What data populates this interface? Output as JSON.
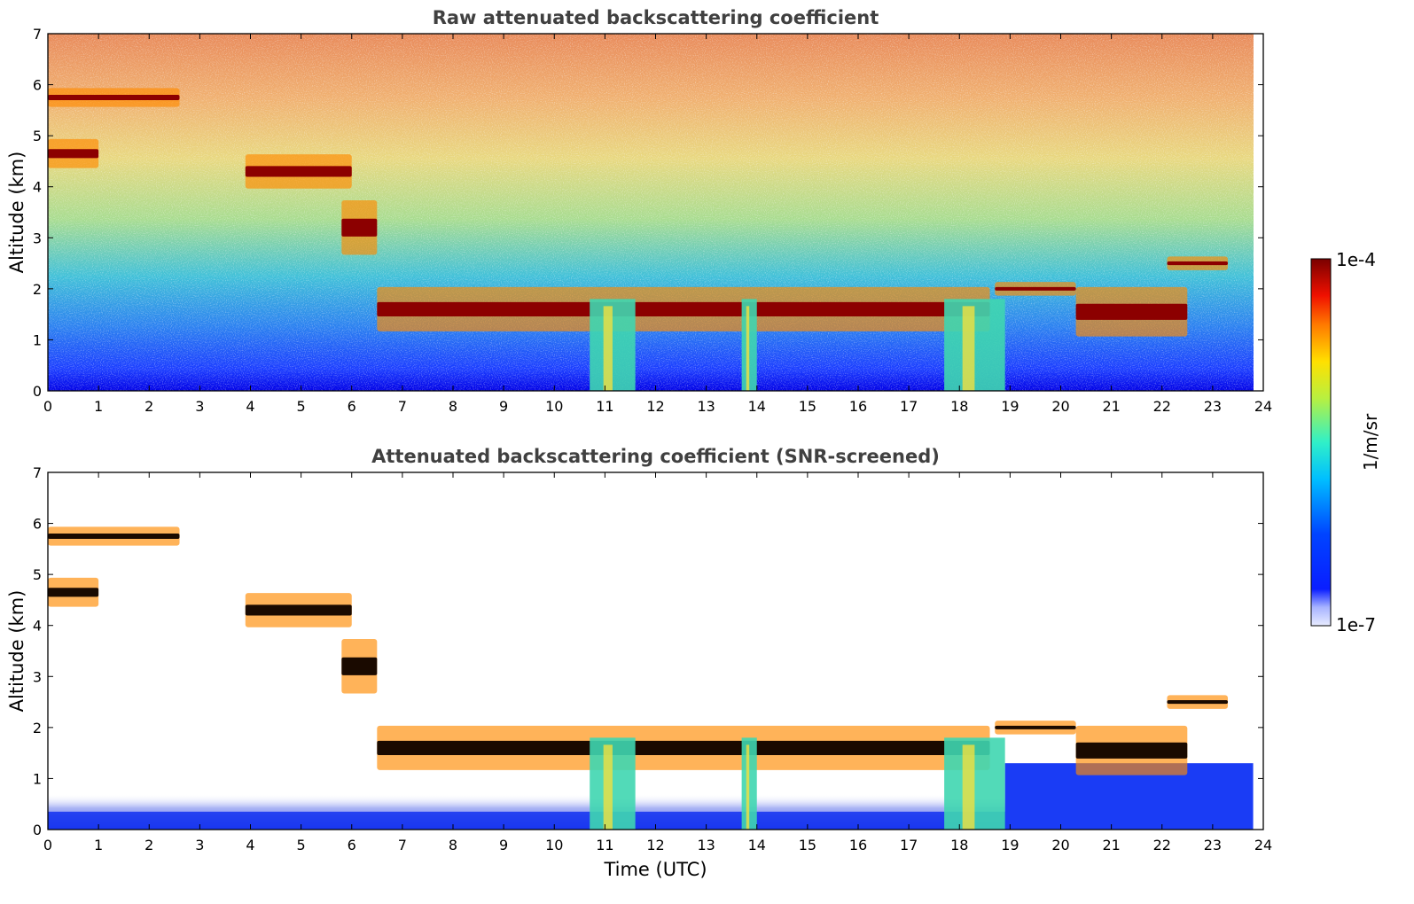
{
  "chart_data": [
    {
      "type": "heatmap",
      "title": "Raw attenuated backscattering coefficient",
      "xlabel": "",
      "ylabel": "Altitude (km)",
      "xlim": [
        0,
        24
      ],
      "ylim": [
        0,
        7
      ],
      "xticks": [
        0,
        1,
        2,
        3,
        4,
        5,
        6,
        7,
        8,
        9,
        10,
        11,
        12,
        13,
        14,
        15,
        16,
        17,
        18,
        19,
        20,
        21,
        22,
        23,
        24
      ],
      "yticks": [
        0,
        1,
        2,
        3,
        4,
        5,
        6,
        7
      ],
      "grid": false,
      "layers": [
        {
          "feature": "cloud",
          "x": [
            0.0,
            2.6
          ],
          "y": [
            5.6,
            5.9
          ]
        },
        {
          "feature": "cloud",
          "x": [
            0.0,
            1.0
          ],
          "y": [
            4.4,
            4.9
          ]
        },
        {
          "feature": "cloud",
          "x": [
            3.9,
            6.0
          ],
          "y": [
            4.0,
            4.6
          ]
        },
        {
          "feature": "cloud",
          "x": [
            5.8,
            6.5
          ],
          "y": [
            2.7,
            3.7
          ]
        },
        {
          "feature": "cloud",
          "x": [
            6.5,
            18.6
          ],
          "y": [
            1.2,
            2.0
          ]
        },
        {
          "feature": "cloud",
          "x": [
            18.7,
            20.3
          ],
          "y": [
            1.9,
            2.1
          ]
        },
        {
          "feature": "cloud",
          "x": [
            20.3,
            22.5
          ],
          "y": [
            1.1,
            2.0
          ]
        },
        {
          "feature": "cloud",
          "x": [
            22.1,
            23.3
          ],
          "y": [
            2.4,
            2.6
          ]
        }
      ],
      "precipitation": [
        [
          10.7,
          11.6
        ],
        [
          13.7,
          14.0
        ],
        [
          17.7,
          18.9
        ]
      ]
    },
    {
      "type": "heatmap",
      "title": "Attenuated backscattering coefficient (SNR-screened)",
      "xlabel": "Time (UTC)",
      "ylabel": "Altitude (km)",
      "xlim": [
        0,
        24
      ],
      "ylim": [
        0,
        7
      ],
      "xticks": [
        0,
        1,
        2,
        3,
        4,
        5,
        6,
        7,
        8,
        9,
        10,
        11,
        12,
        13,
        14,
        15,
        16,
        17,
        18,
        19,
        20,
        21,
        22,
        23,
        24
      ],
      "yticks": [
        0,
        1,
        2,
        3,
        4,
        5,
        6,
        7
      ],
      "grid": false,
      "layers": [
        {
          "feature": "cloud",
          "x": [
            0.0,
            2.6
          ],
          "y": [
            5.6,
            5.9
          ]
        },
        {
          "feature": "cloud",
          "x": [
            0.0,
            1.0
          ],
          "y": [
            4.4,
            4.9
          ]
        },
        {
          "feature": "cloud",
          "x": [
            3.9,
            6.0
          ],
          "y": [
            4.0,
            4.6
          ]
        },
        {
          "feature": "cloud",
          "x": [
            5.8,
            6.5
          ],
          "y": [
            2.7,
            3.7
          ]
        },
        {
          "feature": "cloud",
          "x": [
            6.5,
            18.6
          ],
          "y": [
            1.2,
            2.0
          ]
        },
        {
          "feature": "cloud",
          "x": [
            18.7,
            20.3
          ],
          "y": [
            1.9,
            2.1
          ]
        },
        {
          "feature": "cloud",
          "x": [
            20.3,
            22.5
          ],
          "y": [
            1.1,
            2.0
          ]
        },
        {
          "feature": "cloud",
          "x": [
            22.1,
            23.3
          ],
          "y": [
            2.4,
            2.6
          ]
        }
      ],
      "precipitation": [
        [
          10.7,
          11.6
        ],
        [
          13.7,
          14.0
        ],
        [
          17.7,
          18.9
        ]
      ]
    }
  ],
  "colorbar": {
    "label": "1/m/sr",
    "max_label": "1e-4",
    "min_label": "1e-7",
    "scale": "log",
    "range": [
      1e-07,
      0.0001
    ],
    "colormap": "jet"
  }
}
